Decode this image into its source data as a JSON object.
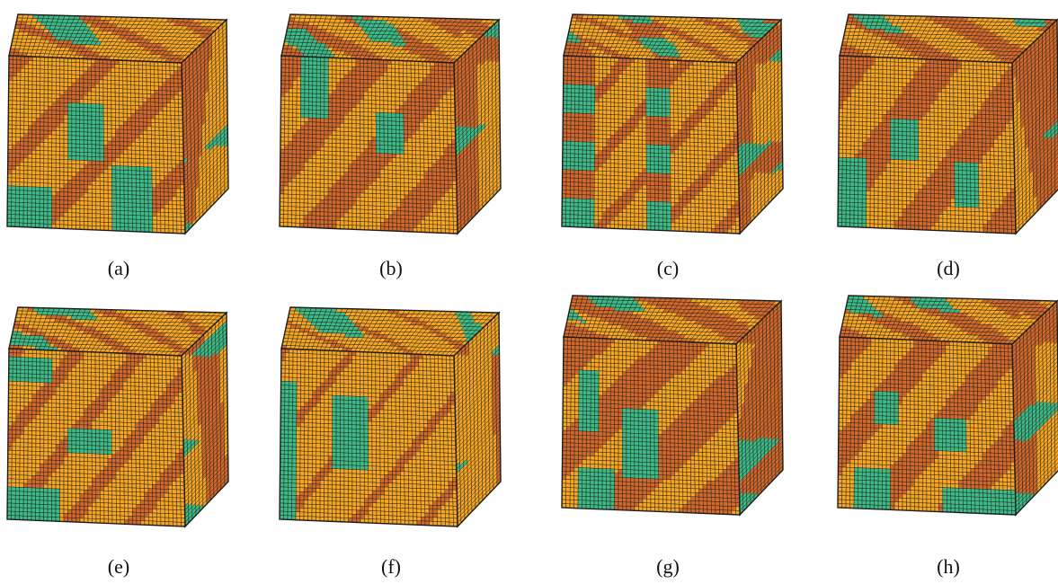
{
  "figure": {
    "panels": [
      {
        "label": "(a)",
        "style": "a"
      },
      {
        "label": "(b)",
        "style": "b"
      },
      {
        "label": "(c)",
        "style": "c"
      },
      {
        "label": "(d)",
        "style": "d"
      },
      {
        "label": "(e)",
        "style": "e"
      },
      {
        "label": "(f)",
        "style": "f"
      },
      {
        "label": "(g)",
        "style": "g"
      },
      {
        "label": "(h)",
        "style": "h"
      }
    ],
    "colors": {
      "orange": "#f5a623",
      "rust": "#d2692a",
      "green": "#3dba86",
      "mesh": "#1a1a1a",
      "shadow": "#1b1b1b"
    }
  }
}
